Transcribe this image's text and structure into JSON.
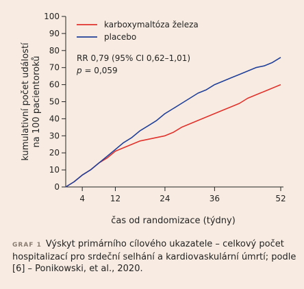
{
  "chart_data": {
    "type": "line",
    "xlabel": "čas od randomizace (týdny)",
    "ylabel": [
      "kumulativní počet událostí",
      "na 100 pacientoroků"
    ],
    "xlim": [
      0,
      52
    ],
    "ylim": [
      0,
      100
    ],
    "xticks": [
      4,
      12,
      24,
      36,
      52
    ],
    "yticks": [
      0,
      10,
      20,
      30,
      40,
      50,
      60,
      70,
      80,
      90,
      100
    ],
    "legend_position": "top-left",
    "grid": false,
    "series": [
      {
        "name": "karboxymaltóza železa",
        "color": "#e0312b",
        "x": [
          0,
          2,
          4,
          6,
          8,
          10,
          12,
          14,
          16,
          18,
          20,
          22,
          24,
          26,
          28,
          30,
          32,
          34,
          36,
          38,
          40,
          42,
          44,
          46,
          48,
          50,
          52
        ],
        "y": [
          0,
          3,
          7,
          10,
          14,
          17,
          21,
          23,
          25,
          27,
          28,
          29,
          30,
          32,
          35,
          37,
          39,
          41,
          43,
          45,
          47,
          49,
          52,
          54,
          56,
          58,
          60
        ]
      },
      {
        "name": "placebo",
        "color": "#1f3f99",
        "x": [
          0,
          2,
          4,
          6,
          8,
          10,
          12,
          14,
          16,
          18,
          20,
          22,
          24,
          26,
          28,
          30,
          32,
          34,
          36,
          38,
          40,
          42,
          44,
          46,
          48,
          50,
          52
        ],
        "y": [
          0,
          3,
          7,
          10,
          14,
          18,
          22,
          26,
          29,
          33,
          36,
          39,
          43,
          46,
          49,
          52,
          55,
          57,
          60,
          62,
          64,
          66,
          68,
          70,
          71,
          73,
          76
        ]
      }
    ],
    "annotations": [
      "RR 0,79 (95% CI 0,62–1,01)",
      "p = 0,059"
    ]
  },
  "caption": {
    "label": "GRAF 1",
    "text": "Výskyt primárního cílového ukazatele – celkový počet hospitalizací pro srdeční selhání a kardiovaskulární úmrtí; podle [6] – Ponikowski, et al., 2020."
  }
}
